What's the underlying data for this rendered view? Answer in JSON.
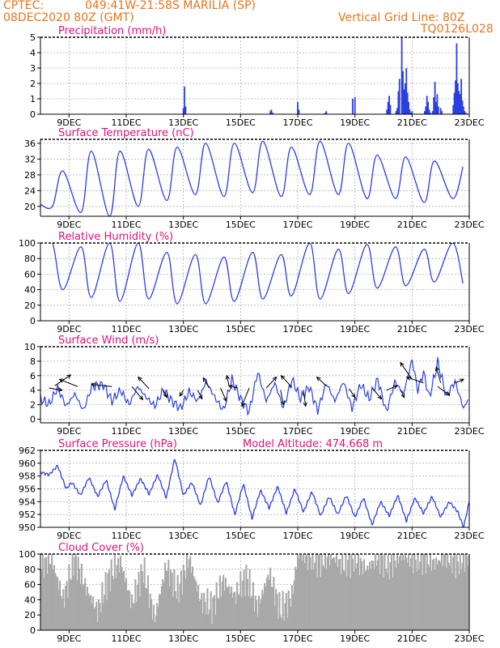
{
  "header": {
    "source": "CPTEC:",
    "location": "049:41W-21:58S   MARILIA (SP)",
    "run": "08DEC2020 80Z (GMT)",
    "grid_note": "Vertical Grid Line: 80Z",
    "model": "TQ0126L028"
  },
  "colors": {
    "header": "#e8741c",
    "title": "#e0107a",
    "line": "#2b3fe0",
    "bar": "#2b3fe0",
    "cloud": "#a9a9a9",
    "grid": "#b0b0b0"
  },
  "chart_data": [
    {
      "id": "precip",
      "type": "bar",
      "title": "Precipitation (mm/h)",
      "x_ticks": [
        "9DEC",
        "11DEC",
        "13DEC",
        "15DEC",
        "17DEC",
        "19DEC",
        "21DEC",
        "23DEC"
      ],
      "ylim": [
        0,
        5
      ],
      "yticks": [
        0,
        1,
        2,
        3,
        4,
        5
      ],
      "grid": true,
      "x": [
        13.0,
        13.04,
        13.08,
        16.04,
        16.08,
        16.12,
        17.0,
        17.04,
        17.96,
        18.0,
        18.92,
        19.0,
        20.12,
        20.16,
        20.2,
        20.24,
        20.44,
        20.48,
        20.52,
        20.56,
        20.64,
        20.68,
        20.72,
        20.76,
        20.8,
        20.84,
        20.88,
        20.92,
        20.96,
        21.0,
        21.44,
        21.48,
        21.52,
        21.56,
        21.6,
        21.64,
        21.72,
        21.76,
        21.8,
        21.84,
        21.88,
        21.92,
        22.0,
        22.04,
        22.44,
        22.48,
        22.52,
        22.56,
        22.6,
        22.64,
        22.68,
        22.72,
        22.76,
        22.8,
        22.84,
        22.88
      ],
      "values": [
        0.4,
        1.8,
        0.5,
        0.2,
        0.3,
        0.1,
        0.8,
        0.3,
        0.1,
        0.2,
        1.0,
        1.1,
        0.3,
        0.8,
        1.2,
        0.6,
        0.2,
        0.4,
        1.5,
        2.3,
        5.0,
        2.8,
        1.6,
        2.0,
        3.0,
        1.4,
        0.8,
        0.3,
        0.1,
        0.2,
        0.2,
        0.5,
        1.2,
        0.8,
        0.3,
        0.1,
        0.2,
        1.1,
        2.1,
        0.8,
        1.3,
        0.5,
        0.4,
        0.2,
        0.6,
        1.4,
        2.2,
        4.6,
        2.0,
        1.5,
        1.3,
        2.3,
        0.9,
        0.5,
        0.2,
        0.1
      ]
    },
    {
      "id": "temp",
      "type": "line",
      "title": "Surface Temperature (nC)",
      "x_ticks": [
        "9DEC",
        "11DEC",
        "13DEC",
        "15DEC",
        "17DEC",
        "19DEC",
        "21DEC",
        "23DEC"
      ],
      "ylim": [
        17.5,
        37
      ],
      "yticks": [
        20,
        24,
        28,
        32,
        36
      ],
      "grid": true,
      "daily_min": [
        20.0,
        18.5,
        17.5,
        20.0,
        21.5,
        23.0,
        22.5,
        23.5,
        22.5,
        23.0,
        23.0,
        22.0,
        22.0,
        21.0,
        22.0
      ],
      "daily_max": [
        29.0,
        34.0,
        34.0,
        34.5,
        35.0,
        36.0,
        36.0,
        36.5,
        35.0,
        36.5,
        36.0,
        33.0,
        32.5,
        31.5,
        30.0,
        29.0
      ],
      "first": 20.5
    },
    {
      "id": "rh",
      "type": "line",
      "title": "Relative Humidity (%)",
      "x_ticks": [
        "9DEC",
        "11DEC",
        "13DEC",
        "15DEC",
        "17DEC",
        "19DEC",
        "21DEC",
        "23DEC"
      ],
      "ylim": [
        0,
        100
      ],
      "yticks": [
        0,
        20,
        40,
        60,
        80,
        100
      ],
      "grid": true,
      "daily_max": [
        100,
        95,
        100,
        100,
        88,
        85,
        82,
        88,
        85,
        100,
        92,
        98,
        95,
        92,
        100
      ],
      "daily_min": [
        40,
        30,
        25,
        28,
        22,
        22,
        25,
        28,
        32,
        28,
        35,
        42,
        45,
        50,
        48,
        55
      ],
      "first": 100
    },
    {
      "id": "wind",
      "type": "line",
      "title": "Surface Wind (m/s)",
      "x_ticks": [
        "9DEC",
        "11DEC",
        "13DEC",
        "15DEC",
        "17DEC",
        "19DEC",
        "21DEC",
        "23DEC"
      ],
      "ylim": [
        -0.5,
        10
      ],
      "yticks": [
        0,
        2,
        4,
        6,
        8,
        10
      ],
      "grid": true,
      "speed_key": [
        [
          8.0,
          2.8
        ],
        [
          8.3,
          2.0
        ],
        [
          8.6,
          4.3
        ],
        [
          8.9,
          1.8
        ],
        [
          9.2,
          3.5
        ],
        [
          9.5,
          1.2
        ],
        [
          9.8,
          4.5
        ],
        [
          10.2,
          4.8
        ],
        [
          10.5,
          2.5
        ],
        [
          10.8,
          4.0
        ],
        [
          11.1,
          2.0
        ],
        [
          11.4,
          4.5
        ],
        [
          11.7,
          3.0
        ],
        [
          12.0,
          1.8
        ],
        [
          12.3,
          4.0
        ],
        [
          12.6,
          2.5
        ],
        [
          12.9,
          1.5
        ],
        [
          13.2,
          3.8
        ],
        [
          13.5,
          2.5
        ],
        [
          13.8,
          5.2
        ],
        [
          14.1,
          3.0
        ],
        [
          14.4,
          1.2
        ],
        [
          14.7,
          5.5
        ],
        [
          15.0,
          2.8
        ],
        [
          15.3,
          1.0
        ],
        [
          15.6,
          6.5
        ],
        [
          15.9,
          2.5
        ],
        [
          16.2,
          5.0
        ],
        [
          16.5,
          1.5
        ],
        [
          16.8,
          5.5
        ],
        [
          17.1,
          2.8
        ],
        [
          17.4,
          4.5
        ],
        [
          17.7,
          1.2
        ],
        [
          18.0,
          5.0
        ],
        [
          18.3,
          2.5
        ],
        [
          18.6,
          5.2
        ],
        [
          18.9,
          1.5
        ],
        [
          19.2,
          4.8
        ],
        [
          19.5,
          2.8
        ],
        [
          19.8,
          5.5
        ],
        [
          20.1,
          1.0
        ],
        [
          20.4,
          5.2
        ],
        [
          20.7,
          3.5
        ],
        [
          21.0,
          8.2
        ],
        [
          21.2,
          4.0
        ],
        [
          21.4,
          6.5
        ],
        [
          21.6,
          3.0
        ],
        [
          21.9,
          7.8
        ],
        [
          22.2,
          3.2
        ],
        [
          22.5,
          5.2
        ],
        [
          22.8,
          1.5
        ],
        [
          23.0,
          3.0
        ]
      ],
      "arrows": [
        [
          8.3,
          4.3,
          1.8,
          -0.3
        ],
        [
          8.5,
          4.6,
          2.2,
          1.5
        ],
        [
          9.3,
          4.5,
          -2.5,
          1.0
        ],
        [
          10.5,
          4.5,
          -2.8,
          0.3
        ],
        [
          11.2,
          4.5,
          1.5,
          -1.8
        ],
        [
          11.8,
          4.2,
          -1.5,
          1.6
        ],
        [
          12.3,
          4.0,
          0.5,
          -1.0
        ],
        [
          13.0,
          4.0,
          -0.5,
          -0.8
        ],
        [
          13.5,
          4.0,
          0.6,
          -1.2
        ],
        [
          13.9,
          4.3,
          -0.8,
          1.4
        ],
        [
          14.3,
          4.3,
          0.8,
          -1.8
        ],
        [
          14.6,
          4.5,
          -0.3,
          1.5
        ],
        [
          14.9,
          4.3,
          -1.2,
          0.3
        ],
        [
          15.3,
          4.3,
          -1.0,
          -2.5
        ],
        [
          15.9,
          4.3,
          1.4,
          1.5
        ],
        [
          16.4,
          4.0,
          0.4,
          -2.0
        ],
        [
          16.8,
          4.4,
          -1.5,
          1.6
        ],
        [
          17.2,
          4.0,
          0.3,
          -2.2
        ],
        [
          18.0,
          4.6,
          -1.3,
          1.2
        ],
        [
          18.8,
          4.2,
          0.8,
          -1.2
        ],
        [
          19.6,
          4.3,
          1.3,
          -1.5
        ],
        [
          20.1,
          4.0,
          1.5,
          0.6
        ],
        [
          20.6,
          4.0,
          0.5,
          -1.0
        ],
        [
          21.0,
          5.5,
          -1.6,
          2.3
        ],
        [
          21.4,
          5.0,
          -2.3,
          0.8
        ],
        [
          21.9,
          4.5,
          1.6,
          -1.2
        ],
        [
          22.0,
          5.0,
          -0.6,
          2.2
        ],
        [
          22.5,
          5.0,
          1.2,
          0.5
        ]
      ]
    },
    {
      "id": "pres",
      "type": "line",
      "title": "Surface Pressure (hPa)",
      "subtitle": "Model Altitude: 474.668  m",
      "x_ticks": [
        "9DEC",
        "11DEC",
        "13DEC",
        "15DEC",
        "17DEC",
        "19DEC",
        "21DEC",
        "23DEC"
      ],
      "ylim": [
        950,
        962
      ],
      "yticks": [
        950,
        952,
        954,
        956,
        958,
        960,
        962
      ],
      "grid": true,
      "key": [
        [
          8.0,
          958.6
        ],
        [
          8.3,
          958.2
        ],
        [
          8.6,
          959.6
        ],
        [
          8.9,
          956.0
        ],
        [
          9.1,
          957.0
        ],
        [
          9.4,
          955.0
        ],
        [
          9.7,
          957.8
        ],
        [
          10.0,
          954.8
        ],
        [
          10.3,
          957.4
        ],
        [
          10.6,
          952.8
        ],
        [
          10.9,
          958.0
        ],
        [
          11.2,
          955.0
        ],
        [
          11.5,
          957.6
        ],
        [
          11.8,
          955.2
        ],
        [
          12.1,
          958.2
        ],
        [
          12.4,
          954.6
        ],
        [
          12.7,
          960.8
        ],
        [
          13.0,
          955.0
        ],
        [
          13.3,
          957.0
        ],
        [
          13.6,
          953.4
        ],
        [
          13.9,
          958.0
        ],
        [
          14.2,
          953.8
        ],
        [
          14.5,
          957.2
        ],
        [
          14.8,
          952.0
        ],
        [
          15.1,
          956.8
        ],
        [
          15.4,
          951.4
        ],
        [
          15.7,
          955.8
        ],
        [
          16.0,
          953.0
        ],
        [
          16.3,
          956.4
        ],
        [
          16.6,
          952.2
        ],
        [
          16.9,
          956.0
        ],
        [
          17.2,
          952.4
        ],
        [
          17.5,
          955.6
        ],
        [
          17.8,
          951.8
        ],
        [
          18.1,
          954.8
        ],
        [
          18.4,
          952.0
        ],
        [
          18.7,
          955.0
        ],
        [
          19.0,
          951.6
        ],
        [
          19.3,
          954.6
        ],
        [
          19.6,
          950.4
        ],
        [
          19.9,
          954.0
        ],
        [
          20.2,
          951.8
        ],
        [
          20.5,
          955.0
        ],
        [
          20.8,
          951.0
        ],
        [
          21.1,
          954.6
        ],
        [
          21.4,
          952.2
        ],
        [
          21.7,
          954.8
        ],
        [
          22.0,
          951.6
        ],
        [
          22.3,
          954.0
        ],
        [
          22.6,
          952.4
        ],
        [
          22.8,
          950.0
        ],
        [
          23.0,
          954.0
        ]
      ]
    },
    {
      "id": "cloud",
      "type": "bar",
      "title": "Cloud Cover (%)",
      "x_ticks": [
        "9DEC",
        "11DEC",
        "13DEC",
        "15DEC",
        "17DEC",
        "19DEC",
        "21DEC",
        "23DEC"
      ],
      "ylim": [
        0,
        100
      ],
      "yticks": [
        0,
        20,
        40,
        60,
        80,
        100
      ],
      "grid": true,
      "key": [
        [
          8.0,
          85
        ],
        [
          8.4,
          92
        ],
        [
          8.8,
          40
        ],
        [
          9.2,
          95
        ],
        [
          9.6,
          55
        ],
        [
          10.0,
          25
        ],
        [
          10.4,
          70
        ],
        [
          10.8,
          90
        ],
        [
          11.2,
          35
        ],
        [
          11.6,
          80
        ],
        [
          12.0,
          15
        ],
        [
          12.4,
          85
        ],
        [
          12.8,
          50
        ],
        [
          13.2,
          95
        ],
        [
          13.6,
          40
        ],
        [
          14.0,
          30
        ],
        [
          14.4,
          65
        ],
        [
          14.8,
          45
        ],
        [
          15.2,
          70
        ],
        [
          15.6,
          30
        ],
        [
          16.0,
          75
        ],
        [
          16.4,
          25
        ],
        [
          16.8,
          45
        ],
        [
          17.0,
          98
        ],
        [
          17.4,
          96
        ],
        [
          17.8,
          90
        ],
        [
          18.2,
          96
        ],
        [
          18.6,
          85
        ],
        [
          19.0,
          95
        ],
        [
          19.4,
          80
        ],
        [
          19.8,
          95
        ],
        [
          20.2,
          85
        ],
        [
          20.6,
          98
        ],
        [
          21.0,
          92
        ],
        [
          21.4,
          95
        ],
        [
          21.8,
          88
        ],
        [
          22.2,
          96
        ],
        [
          22.6,
          90
        ],
        [
          23.0,
          95
        ]
      ]
    }
  ]
}
